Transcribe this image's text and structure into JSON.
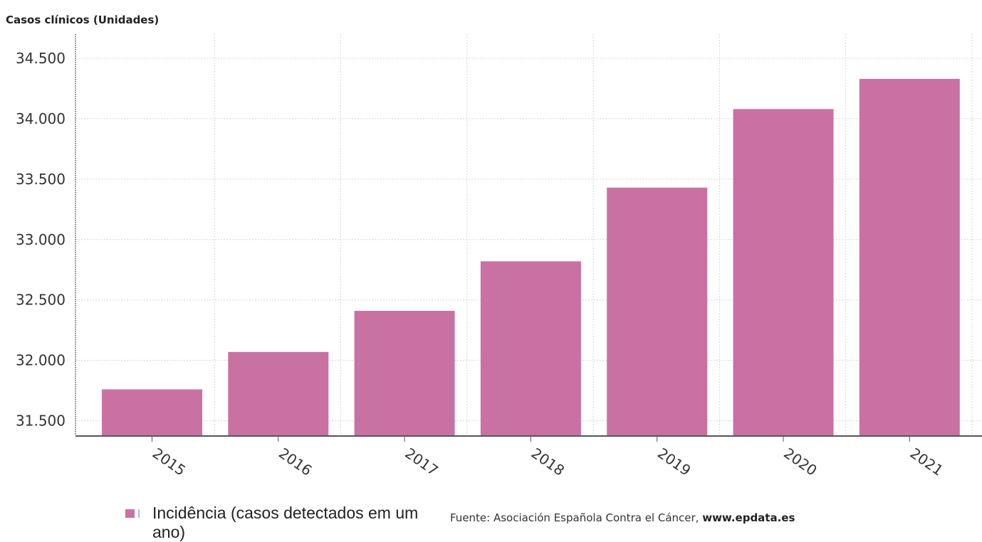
{
  "chart_data": {
    "type": "bar",
    "title": "",
    "ylabel": "Casos clínicos (Unidades)",
    "xlabel": "",
    "categories": [
      "2015",
      "2016",
      "2017",
      "2018",
      "2019",
      "2020",
      "2021"
    ],
    "series": [
      {
        "name": "Incidência (casos detectados em um ano)",
        "values": [
          31760,
          32070,
          32410,
          32820,
          33430,
          34080,
          34330
        ]
      }
    ],
    "ylim": [
      31380,
      34700
    ],
    "yticks": [
      31500,
      32000,
      32500,
      33000,
      33500,
      34000,
      34500
    ],
    "ytick_labels": [
      "31.500",
      "32.000",
      "32.500",
      "33.000",
      "33.500",
      "34.000",
      "34.500"
    ],
    "grid": true,
    "legend_position": "bottom-left",
    "colors": {
      "bar": "#c971a3",
      "grid": "#d6d6d6",
      "axis": "#555555",
      "text": "#333333"
    }
  },
  "source": {
    "prefix": "Fuente: Asociación Española Contra el Cáncer, ",
    "site": "www.epdata.es"
  }
}
